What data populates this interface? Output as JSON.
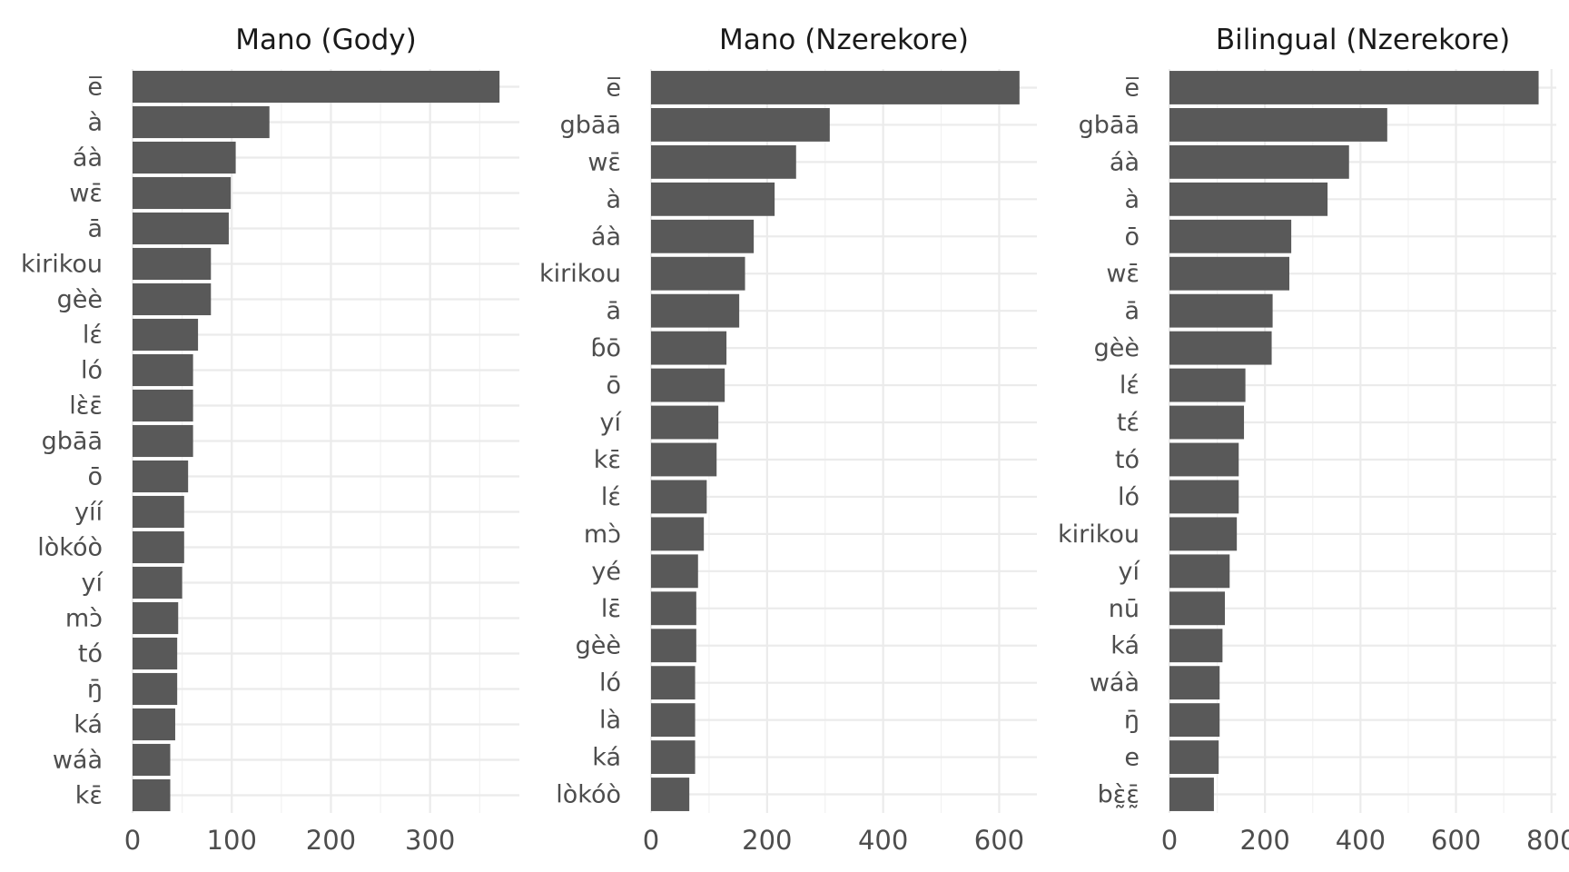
{
  "chart_data": [
    {
      "type": "bar",
      "orientation": "horizontal",
      "title": "Mano (Gody)",
      "xlim": [
        0,
        390
      ],
      "x_ticks": [
        0,
        100,
        200,
        300
      ],
      "x_tick_labels": [
        "0",
        "100",
        "200",
        "300"
      ],
      "grid": true,
      "categories": [
        "e̅",
        "à",
        "áà",
        "wɛ̄",
        "ā",
        "kirikou",
        "gèè",
        "lɛ́",
        "ló",
        "lɛ̀ɛ̄",
        "gbāā",
        "ō",
        "yíí",
        "lòkóò",
        "yí",
        "mɔ̀",
        "tó",
        "ŋ̄",
        "ká",
        "wáà",
        "kɛ̄"
      ],
      "values": [
        370,
        138,
        104,
        99,
        97,
        79,
        79,
        66,
        61,
        61,
        61,
        56,
        52,
        52,
        50,
        46,
        45,
        45,
        43,
        38,
        38
      ]
    },
    {
      "type": "bar",
      "orientation": "horizontal",
      "title": "Mano (Nzerekore)",
      "xlim": [
        0,
        665
      ],
      "x_ticks": [
        0,
        200,
        400,
        600
      ],
      "x_tick_labels": [
        "0",
        "200",
        "400",
        "600"
      ],
      "grid": true,
      "categories": [
        "e̅",
        "gbāā",
        "wɛ̄",
        "à",
        "áà",
        "kirikou",
        "ā",
        "ɓō",
        "ō",
        "yí",
        "kɛ̄",
        "lɛ́",
        "mɔ̀",
        "yé",
        "lɛ̄",
        "gèè",
        "ló",
        "là",
        "ká",
        "lòkóò"
      ],
      "values": [
        635,
        308,
        250,
        213,
        177,
        162,
        152,
        130,
        127,
        116,
        113,
        96,
        91,
        81,
        78,
        78,
        76,
        76,
        76,
        66
      ]
    },
    {
      "type": "bar",
      "orientation": "horizontal",
      "title": "Bilingual (Nzerekore)",
      "xlim": [
        0,
        810
      ],
      "x_ticks": [
        0,
        200,
        400,
        600,
        800
      ],
      "x_tick_labels": [
        "0",
        "200",
        "400",
        "600",
        "800"
      ],
      "grid": true,
      "categories": [
        "e̅",
        "gbāā",
        "áà",
        "à",
        "ō",
        "wɛ̄",
        "ā",
        "gèè",
        "lɛ́",
        "tɛ́",
        "tó",
        "ló",
        "kirikou",
        "yí",
        "nū",
        "ká",
        "wáà",
        "ŋ̄",
        "e",
        "bɛ̰̀ɛ̰̄"
      ],
      "values": [
        773,
        456,
        376,
        331,
        255,
        251,
        216,
        214,
        159,
        156,
        145,
        145,
        141,
        126,
        116,
        111,
        105,
        105,
        103,
        93
      ]
    }
  ]
}
